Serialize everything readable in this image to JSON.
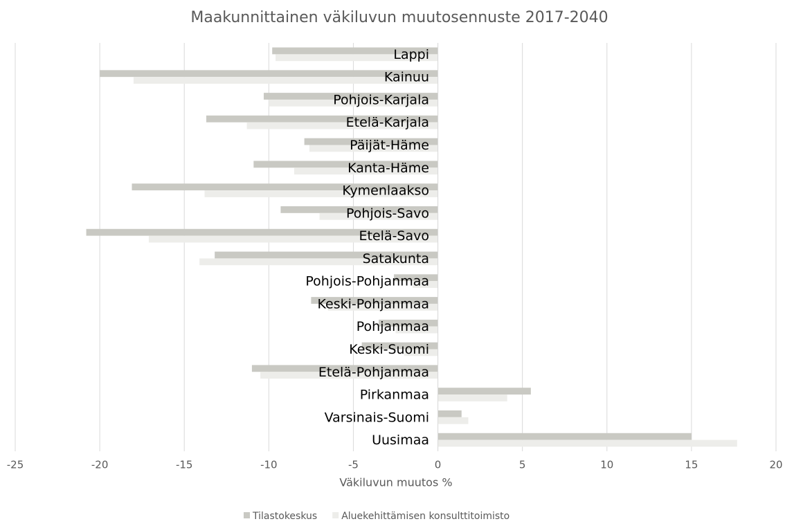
{
  "chart_data": {
    "type": "barh",
    "title": "Maakunnittainen väkiluvun muutosennuste 2017-2040",
    "xlabel": "Väkiluvun muutos %",
    "categories": [
      "Lappi",
      "Kainuu",
      "Pohjois-Karjala",
      "Etelä-Karjala",
      "Päijät-Häme",
      "Kanta-Häme",
      "Kymenlaakso",
      "Pohjois-Savo",
      "Etelä-Savo",
      "Satakunta",
      "Pohjois-Pohjanmaa",
      "Keski-Pohjanmaa",
      "Pohjanmaa",
      "Keski-Suomi",
      "Etelä-Pohjanmaa",
      "Pirkanmaa",
      "Varsinais-Suomi",
      "Uusimaa"
    ],
    "series": [
      {
        "name": "Tilastokeskus",
        "color": "#c9c9c3",
        "values": [
          -9.8,
          -20.0,
          -10.3,
          -13.7,
          -7.9,
          -10.9,
          -18.1,
          -9.3,
          -20.8,
          -13.2,
          -2.6,
          -7.5,
          -3.5,
          -4.5,
          -11.0,
          5.5,
          1.4,
          15.0
        ]
      },
      {
        "name": "Aluekehittämisen konsulttitoimisto",
        "color": "#ededea",
        "values": [
          -9.6,
          -18.0,
          -10.0,
          -11.3,
          -7.6,
          -8.5,
          -13.8,
          -7.0,
          -17.1,
          -14.1,
          -1.5,
          -6.5,
          -2.5,
          -2.0,
          -10.5,
          4.1,
          1.8,
          17.7
        ]
      }
    ],
    "xlim": [
      -25,
      20
    ],
    "xticks": [
      -25,
      -20,
      -15,
      -10,
      -5,
      0,
      5,
      10,
      15,
      20
    ],
    "grid": true,
    "legend": "bottom"
  }
}
